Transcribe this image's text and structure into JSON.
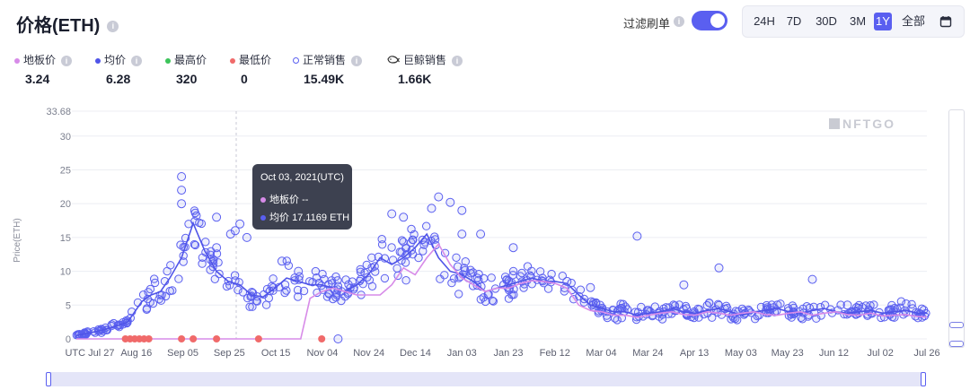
{
  "header": {
    "title": "价格(ETH)",
    "info_icon": "info-icon"
  },
  "filter": {
    "label": "过滤刷单",
    "enabled": true,
    "info_icon": "info-icon"
  },
  "ranges": {
    "items": [
      "24H",
      "7D",
      "30D",
      "3M",
      "1Y",
      "全部"
    ],
    "active": "1Y",
    "calendar_icon": "calendar-icon"
  },
  "stats": [
    {
      "label": "地板价",
      "value": "3.24",
      "color": "#d78be8",
      "marker": "dot"
    },
    {
      "label": "均价",
      "value": "6.28",
      "color": "#4f54e8",
      "marker": "dot"
    },
    {
      "label": "最高价",
      "value": "320",
      "color": "#3cc45a",
      "marker": "dot"
    },
    {
      "label": "最低价",
      "value": "0",
      "color": "#f06a6a",
      "marker": "dot"
    },
    {
      "label": "正常销售",
      "value": "15.49K",
      "color": "#5a5ff0",
      "marker": "ring"
    },
    {
      "label": "巨鲸销售",
      "value": "1.66K",
      "color": "#333333",
      "marker": "whale-icon"
    }
  ],
  "watermark": "NFTGO",
  "tooltip": {
    "date": "Oct 03, 2021(UTC)",
    "floor_label": "地板价",
    "floor_value": "--",
    "avg_label": "均价",
    "avg_value": "17.1169 ETH"
  },
  "chart_data": {
    "type": "scatter",
    "ylabel": "Price(ETH)",
    "y_ticks": [
      "33.68",
      "30",
      "25",
      "20",
      "15",
      "10",
      "5",
      "0"
    ],
    "ylim": [
      0,
      33.68
    ],
    "x_ticks": [
      "UTC Jul 27",
      "Aug 16",
      "Sep 05",
      "Sep 25",
      "Oct 15",
      "Nov 04",
      "Nov 24",
      "Dec 14",
      "Jan 03",
      "Jan 23",
      "Feb 12",
      "Mar 04",
      "Mar 24",
      "Apr 13",
      "May 03",
      "May 23",
      "Jun 12",
      "Jul 02",
      "Jul 26"
    ],
    "grid": "horizontal",
    "series": [
      {
        "name": "均价",
        "kind": "line",
        "color": "#4f54e8",
        "x": [
          0,
          10,
          18,
          22,
          25,
          28,
          32,
          36,
          40,
          45,
          50,
          55,
          60,
          65,
          70,
          75,
          80,
          85,
          90,
          95,
          100,
          105,
          110,
          115,
          120,
          125,
          130,
          135,
          140,
          145,
          150,
          155,
          160,
          165,
          170,
          175,
          180,
          185,
          190,
          195,
          200,
          205,
          210,
          215,
          220,
          225,
          230,
          235,
          240,
          245,
          250,
          255,
          260,
          265,
          270,
          275,
          280,
          285,
          290,
          295,
          300,
          305,
          310,
          315,
          320,
          325,
          330,
          335,
          340,
          345,
          350,
          355,
          360,
          364
        ],
        "y": [
          0.5,
          1.2,
          2,
          2.5,
          4,
          5.5,
          6.5,
          7,
          9,
          12,
          17.1,
          13,
          10,
          8.5,
          8,
          6.5,
          6.2,
          7.5,
          9,
          8.5,
          8,
          8,
          7.5,
          7,
          8,
          9.5,
          12,
          11,
          12,
          13.5,
          15.5,
          12,
          10,
          9.5,
          8.5,
          7,
          7.5,
          8,
          8.5,
          9,
          8.5,
          8.5,
          8.2,
          6.5,
          5,
          4.5,
          4,
          4,
          3.5,
          3.8,
          4,
          4.5,
          4,
          3.8,
          4.2,
          4.5,
          4,
          3.5,
          4,
          4.2,
          4.5,
          4,
          3.8,
          4.2,
          4.5,
          4,
          3.8,
          4,
          4.2,
          3.8,
          4,
          4.2,
          3.8,
          3.8
        ]
      },
      {
        "name": "地板价",
        "kind": "line",
        "color": "#d78be8",
        "x": [
          0,
          15,
          25,
          35,
          45,
          55,
          65,
          75,
          85,
          90,
          96,
          100,
          105,
          110,
          115,
          120,
          125,
          130,
          135,
          140,
          145,
          150,
          155,
          160,
          165,
          170,
          175,
          180,
          185,
          190,
          195,
          200,
          205,
          210,
          215,
          220,
          225,
          230,
          235,
          240,
          245,
          250,
          255,
          260,
          265,
          270,
          275,
          280,
          285,
          290,
          295,
          300,
          305,
          310,
          315,
          320,
          325,
          330,
          335,
          340,
          345,
          350,
          355,
          360,
          364
        ],
        "y": [
          0,
          0,
          0,
          0,
          0,
          0,
          0,
          0,
          0,
          0,
          0,
          6,
          7,
          7.5,
          7,
          6.5,
          6.5,
          6.5,
          8,
          10.5,
          9.5,
          12,
          14,
          11,
          9,
          8,
          7,
          7.5,
          7.5,
          8.2,
          8.6,
          8.5,
          8.2,
          7.5,
          5,
          4.2,
          4,
          3.5,
          3.5,
          3.2,
          3.5,
          3.8,
          4,
          3.6,
          3.5,
          4,
          3.8,
          3.5,
          3.8,
          4,
          3.6,
          3.5,
          3.8,
          4,
          3.5,
          3.8,
          4,
          3.6,
          3.5,
          3.8,
          3.4,
          3.5,
          3.6,
          3.3,
          3.24
        ]
      }
    ],
    "scatter": {
      "normal_sales": {
        "name": "正常销售",
        "color": "#5a5ff0",
        "count_label": "15.49K"
      },
      "whale_sales": {
        "name": "巨鲸销售",
        "count_label": "1.66K"
      },
      "lowest_sales": {
        "name": "最低价",
        "color": "#f06a6a",
        "x": [
          21,
          23,
          25,
          27,
          29,
          31,
          45,
          50,
          60,
          78,
          105
        ],
        "y": [
          0,
          0,
          0,
          0,
          0,
          0,
          0,
          0,
          0,
          0,
          0
        ]
      },
      "highlights": {
        "x": [
          45,
          45,
          45,
          73,
          60,
          70,
          60,
          68,
          66,
          88,
          95,
          112,
          135,
          140,
          152,
          155,
          160,
          165,
          165,
          173,
          187,
          210,
          220,
          240,
          260,
          275,
          300,
          315,
          330,
          350
        ],
        "y": [
          24,
          22,
          20,
          15,
          13.5,
          17,
          18,
          16,
          15.5,
          11.5,
          10,
          0,
          18.5,
          18,
          19.3,
          21,
          20.2,
          19,
          15.5,
          15.5,
          13.5,
          8.5,
          7.6,
          15.2,
          8,
          10.5,
          5,
          8.8,
          5,
          3.2
        ]
      }
    }
  }
}
